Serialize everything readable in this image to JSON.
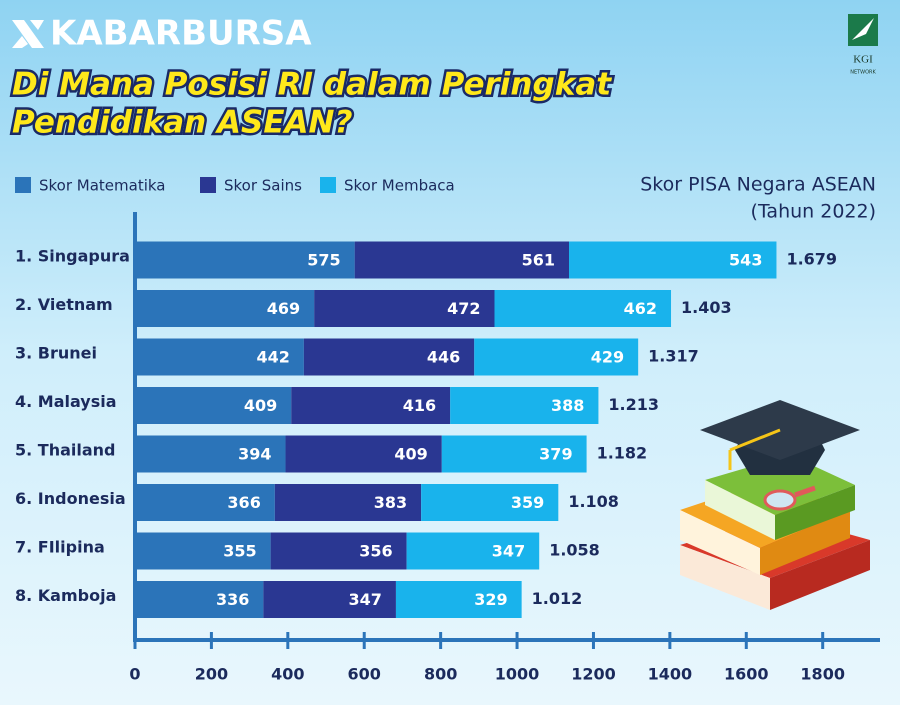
{
  "brand": "KABARBURSA",
  "headline": [
    "Di Mana Posisi RI dalam Peringkat",
    "Pendidikan ASEAN?"
  ],
  "logo": {
    "text": "KGI",
    "subtext": "NETWORK"
  },
  "chart_data": {
    "type": "stacked-bar-horizontal",
    "subtitle": [
      "Skor PISA Negara ASEAN",
      "(Tahun 2022)"
    ],
    "categories": [
      "1.  Singapura",
      "2.  Vietnam",
      "3.  Brunei",
      "4.  Malaysia",
      "5.  Thailand",
      "6.  Indonesia",
      "7.  FIlipina",
      "8.  Kamboja"
    ],
    "series": [
      {
        "name": "Skor Matematika",
        "color": "#2b74b9",
        "values": [
          575,
          469,
          442,
          409,
          394,
          366,
          355,
          336
        ]
      },
      {
        "name": "Skor Sains",
        "color": "#2a3792",
        "values": [
          561,
          472,
          446,
          416,
          409,
          383,
          356,
          347
        ]
      },
      {
        "name": "Skor Membaca",
        "color": "#19b3ec",
        "values": [
          543,
          462,
          429,
          388,
          379,
          359,
          347,
          329
        ]
      }
    ],
    "totals": {
      "values": [
        1679,
        1403,
        1317,
        1213,
        1182,
        1108,
        1058,
        1012
      ],
      "value_labels": [
        "1.679",
        "1.403",
        "1.317",
        "1.213",
        "1.182",
        "1.108",
        "1.058",
        "1.012"
      ]
    },
    "xlim": [
      0,
      1950
    ],
    "xticks": [
      0,
      200,
      400,
      600,
      800,
      1000,
      1200,
      1400,
      1600,
      1800
    ],
    "legend": "top-left"
  }
}
